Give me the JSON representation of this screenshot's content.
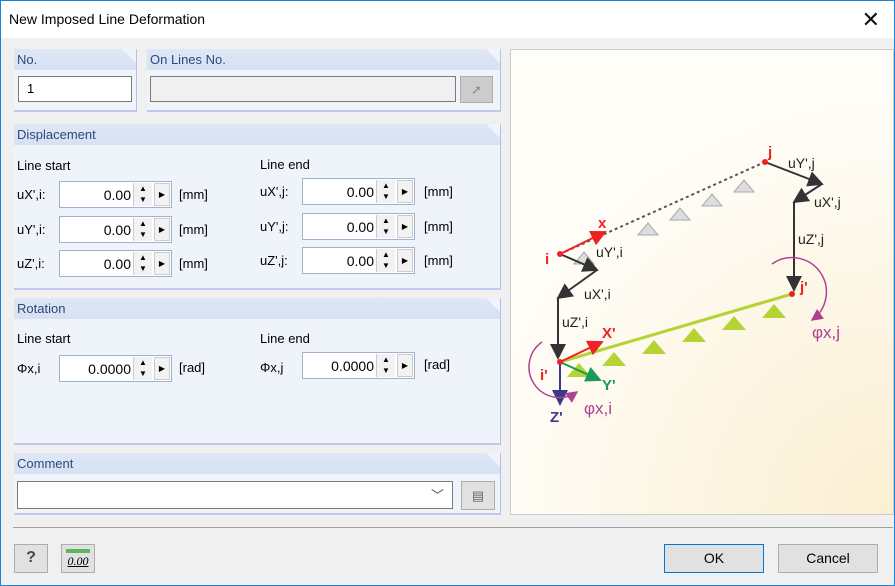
{
  "window": {
    "title": "New Imposed Line Deformation",
    "close_icon": "close-icon"
  },
  "no": {
    "header": "No.",
    "value": "1"
  },
  "on_lines": {
    "header": "On Lines No.",
    "value": "",
    "pick_icon": "pick-cursor-icon"
  },
  "displacement": {
    "header": "Displacement",
    "start_label": "Line start",
    "end_label": "Line end",
    "start": [
      {
        "label": "uX',i:",
        "value": "0.00",
        "unit": "[mm]"
      },
      {
        "label": "uY',i:",
        "value": "0.00",
        "unit": "[mm]"
      },
      {
        "label": "uZ',i:",
        "value": "0.00",
        "unit": "[mm]"
      }
    ],
    "end": [
      {
        "label": "uX',j:",
        "value": "0.00",
        "unit": "[mm]"
      },
      {
        "label": "uY',j:",
        "value": "0.00",
        "unit": "[mm]"
      },
      {
        "label": "uZ',j:",
        "value": "0.00",
        "unit": "[mm]"
      }
    ]
  },
  "rotation": {
    "header": "Rotation",
    "start_label": "Line start",
    "end_label": "Line end",
    "start": {
      "label": "Φx,i",
      "value": "0.0000",
      "unit": "[rad]"
    },
    "end": {
      "label": "Φx,j",
      "value": "0.0000",
      "unit": "[rad]"
    }
  },
  "comment": {
    "header": "Comment",
    "value": ""
  },
  "buttons": {
    "ok": "OK",
    "cancel": "Cancel",
    "help_icon": "help-icon",
    "units_icon": "units-decimal-icon",
    "units_text": "0.00"
  },
  "diagram": {
    "i": "i",
    "j": "j",
    "i_prime": "i'",
    "j_prime": "j'",
    "x": "x",
    "X": "X'",
    "Y": "Y'",
    "Z": "Z'",
    "uYi": "uY',i",
    "uXi": "uX',i",
    "uZi": "uZ',i",
    "uYj": "uY',j",
    "uXj": "uX',j",
    "uZj": "uZ',j",
    "phii": "φx,i",
    "phij": "φx,j"
  }
}
